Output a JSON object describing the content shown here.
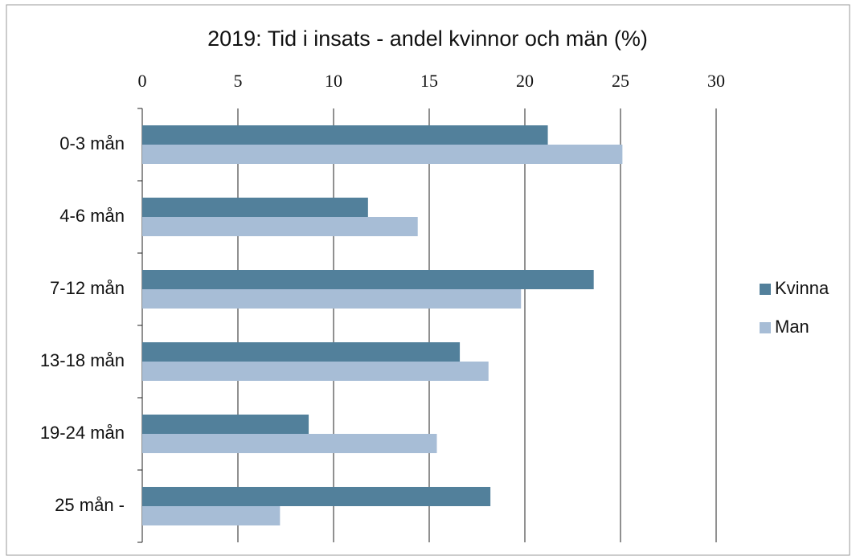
{
  "chart_data": {
    "type": "bar",
    "orientation": "horizontal",
    "title": "2019: Tid i insats - andel kvinnor och män (%)",
    "categories": [
      "0-3 mån",
      "4-6 mån",
      "7-12 mån",
      "13-18 mån",
      "19-24 mån",
      "25 mån -"
    ],
    "series": [
      {
        "name": "Kvinna",
        "color": "#52809b",
        "values": [
          21.2,
          11.8,
          23.6,
          16.6,
          8.7,
          18.2
        ]
      },
      {
        "name": "Man",
        "color": "#a7bdd6",
        "values": [
          25.1,
          14.4,
          19.8,
          18.1,
          15.4,
          7.2
        ]
      }
    ],
    "xlim": [
      0,
      30
    ],
    "xticks": [
      0,
      5,
      10,
      15,
      20,
      25,
      30
    ],
    "grid": true,
    "legend": "right"
  }
}
